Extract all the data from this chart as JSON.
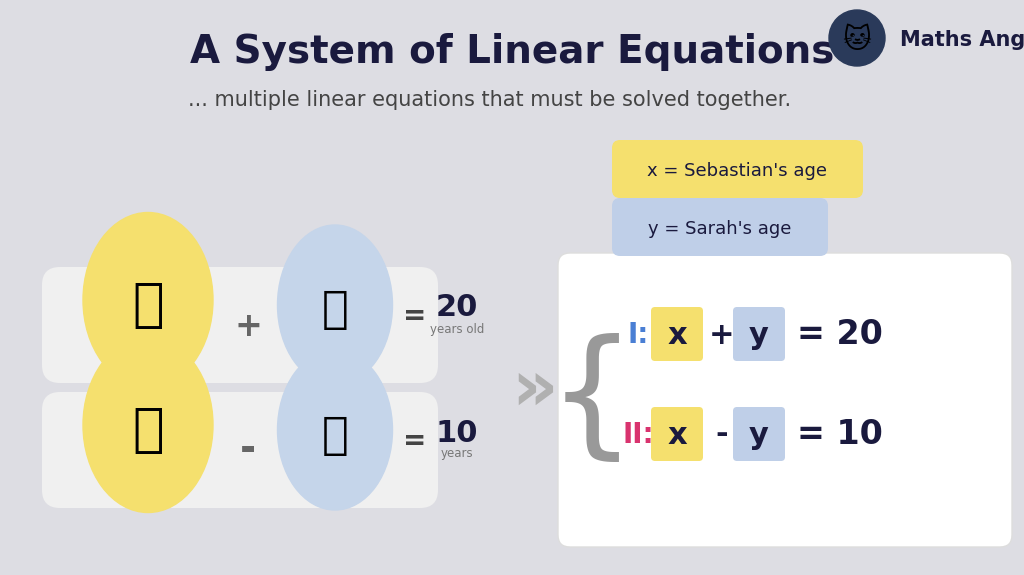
{
  "background_color": "#dddde3",
  "title": "A System of Linear Equations",
  "title_color": "#1a1a3e",
  "title_fontsize": 28,
  "subtitle": "... multiple linear equations that must be solved together.",
  "subtitle_color": "#444444",
  "subtitle_fontsize": 15,
  "brand_text": "Maths Angel",
  "brand_circle_color": "#2a3a5a",
  "eq1_label": "I:",
  "eq1_label_color": "#4a7fd4",
  "eq1_x": "x",
  "eq1_plus": "+",
  "eq1_y": "y",
  "eq1_equals": "= 20",
  "eq2_label": "II:",
  "eq2_label_color": "#d9336e",
  "eq2_x": "x",
  "eq2_minus": "-",
  "eq2_y": "y",
  "eq2_equals": "= 10",
  "x_box_color": "#f5e06e",
  "y_box_color": "#bfcfe8",
  "legend_x_text": "x = Sebastian's age",
  "legend_y_text": "y = Sarah's age",
  "legend_x_color": "#f5e06e",
  "legend_y_color": "#bfcfe8",
  "box_bg_color": "#ffffff",
  "box_edge_color": "#dddddd",
  "sebastian_bg_color": "#f5e06e",
  "sarah_bg_color": "#c5d5ea",
  "pill_color": "#f0f0f0",
  "eq_text_color": "#1a1a3e",
  "arrow_color": "#aaaaaa",
  "number_color": "#1a1a3e",
  "sign_color": "#555555",
  "small_text_color": "#777777"
}
